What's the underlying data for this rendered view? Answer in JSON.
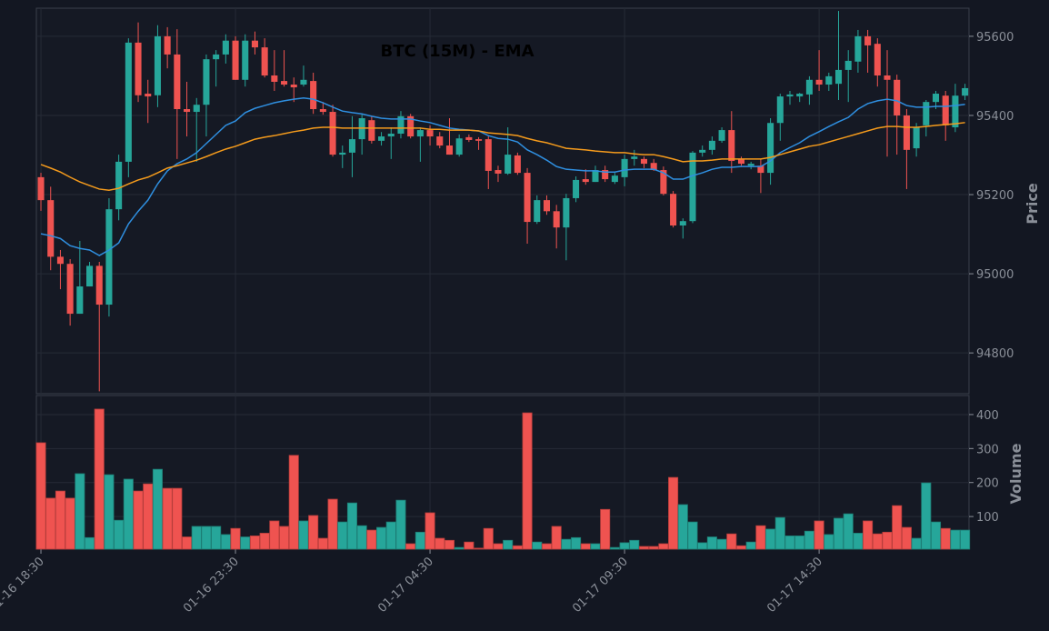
{
  "chart_data": {
    "type": "candlestick",
    "title": "BTC (15M) - EMA",
    "ylabel": "Price",
    "volume_label": "Volume",
    "up_color": "#26a69a",
    "down_color": "#ef5350",
    "grid": true,
    "xlim": [
      -0.47,
      95.41
    ],
    "xticks": [
      {
        "value": 0,
        "label": "01-16 18:30"
      },
      {
        "value": 20,
        "label": "01-16 23:30"
      },
      {
        "value": 40,
        "label": "01-17 04:30"
      },
      {
        "value": 60,
        "label": "01-17 09:30"
      },
      {
        "value": 80,
        "label": "01-17 14:30"
      }
    ],
    "ylim": [
      94697,
      95671
    ],
    "yticks": [
      94800,
      95000,
      95200,
      95400,
      95600
    ],
    "volume_ylim": [
      4,
      456
    ],
    "volume_yticks": [
      100,
      200,
      300,
      400
    ],
    "open": [
      95244,
      95186,
      95043,
      95025,
      94899,
      94968,
      95020,
      94922,
      95163,
      95283,
      95584,
      95455,
      95451,
      95600,
      95554,
      95416,
      95409,
      95427,
      95542,
      95554,
      95589,
      95490,
      95589,
      95572,
      95501,
      95487,
      95478,
      95478,
      95487,
      95416,
      95409,
      95301,
      95306,
      95340,
      95388,
      95336,
      95347,
      95354,
      95398,
      95347,
      95363,
      95347,
      95324,
      95301,
      95345,
      95340,
      95340,
      95262,
      95253,
      95299,
      95255,
      95131,
      95186,
      95158,
      95117,
      95191,
      95239,
      95232,
      95262,
      95232,
      95244,
      95290,
      95290,
      95280,
      95262,
      95202,
      95122,
      95133,
      95306,
      95313,
      95336,
      95363,
      95290,
      95273,
      95273,
      95255,
      95381,
      95448,
      95448,
      95453,
      95490,
      95478,
      95480,
      95515,
      95536,
      95600,
      95581,
      95501,
      95490,
      95400,
      95317,
      95375,
      95434,
      95450,
      95370,
      95450
    ],
    "high": [
      95255,
      95220,
      95060,
      95037,
      95083,
      95030,
      95030,
      95191,
      95301,
      95595,
      95635,
      95490,
      95628,
      95623,
      95618,
      95485,
      95444,
      95554,
      95565,
      95605,
      95600,
      95605,
      95612,
      95595,
      95565,
      95565,
      95496,
      95526,
      95508,
      95434,
      95427,
      95324,
      95398,
      95404,
      95398,
      95358,
      95370,
      95411,
      95404,
      95370,
      95375,
      95358,
      95393,
      95352,
      95352,
      95345,
      95347,
      95273,
      95370,
      95306,
      95267,
      95198,
      95198,
      95174,
      95202,
      95246,
      95264,
      95273,
      95273,
      95255,
      95301,
      95313,
      95296,
      95290,
      95271,
      95209,
      95140,
      95310,
      95324,
      95347,
      95370,
      95411,
      95296,
      95283,
      95290,
      95393,
      95455,
      95462,
      95457,
      95499,
      95565,
      95508,
      95664,
      95565,
      95616,
      95616,
      95595,
      95565,
      95503,
      95416,
      95381,
      95439,
      95462,
      95462,
      95480,
      95480
    ],
    "low": [
      95159,
      95009,
      94961,
      94869,
      94899,
      94968,
      94703,
      94892,
      95135,
      95244,
      95434,
      95381,
      95421,
      95519,
      95290,
      95347,
      95283,
      95347,
      95473,
      95531,
      95490,
      95473,
      95554,
      95496,
      95462,
      95473,
      95434,
      95473,
      95404,
      95402,
      95296,
      95267,
      95244,
      95301,
      95329,
      95324,
      95290,
      95342,
      95342,
      95283,
      95324,
      95317,
      95301,
      95296,
      95333,
      95313,
      95214,
      95232,
      95250,
      95250,
      95076,
      95126,
      95149,
      95064,
      95034,
      95181,
      95225,
      95232,
      95232,
      95227,
      95221,
      95273,
      95267,
      95260,
      95198,
      95117,
      95089,
      95128,
      95296,
      95301,
      95331,
      95255,
      95273,
      95264,
      95204,
      95225,
      95336,
      95427,
      95434,
      95427,
      95462,
      95462,
      95439,
      95434,
      95508,
      95508,
      95473,
      95296,
      95301,
      95214,
      95296,
      95347,
      95416,
      95336,
      95358,
      95439
    ],
    "close": [
      95186,
      95043,
      95025,
      94899,
      94968,
      95020,
      94922,
      95163,
      95283,
      95584,
      95451,
      95448,
      95600,
      95554,
      95416,
      95409,
      95427,
      95542,
      95554,
      95589,
      95490,
      95589,
      95572,
      95501,
      95485,
      95478,
      95471,
      95490,
      95416,
      95409,
      95301,
      95306,
      95340,
      95393,
      95336,
      95347,
      95354,
      95398,
      95347,
      95363,
      95347,
      95324,
      95301,
      95342,
      95338,
      95336,
      95260,
      95253,
      95301,
      95255,
      95131,
      95186,
      95158,
      95117,
      95191,
      95237,
      95232,
      95262,
      95239,
      95248,
      95290,
      95296,
      95278,
      95262,
      95202,
      95122,
      95133,
      95306,
      95313,
      95336,
      95363,
      95285,
      95278,
      95278,
      95255,
      95381,
      95448,
      95453,
      95455,
      95490,
      95478,
      95499,
      95515,
      95538,
      95600,
      95577,
      95501,
      95490,
      95400,
      95313,
      95370,
      95434,
      95455,
      95375,
      95450,
      95469
    ],
    "volume": [
      317,
      154,
      175,
      154,
      226,
      38,
      416,
      223,
      89,
      210,
      175,
      196,
      239,
      183,
      183,
      40,
      71,
      71,
      71,
      47,
      65,
      40,
      43,
      51,
      87,
      71,
      280,
      87,
      103,
      36,
      151,
      84,
      140,
      73,
      60,
      68,
      84,
      148,
      20,
      54,
      111,
      36,
      30,
      9,
      25,
      7,
      65,
      20,
      30,
      14,
      405,
      25,
      20,
      71,
      33,
      38,
      20,
      20,
      121,
      9,
      23,
      30,
      12,
      12,
      20,
      215,
      135,
      84,
      23,
      40,
      33,
      49,
      14,
      25,
      73,
      63,
      97,
      43,
      43,
      57,
      87,
      47,
      95,
      108,
      51,
      87,
      49,
      54,
      132,
      68,
      36,
      199,
      84,
      65,
      60,
      60
    ],
    "ema": [
      {
        "color": "#2f8fe0",
        "values": [
          95101,
          95096,
          95089,
          95071,
          95064,
          95060,
          95046,
          95060,
          95078,
          95126,
          95158,
          95186,
          95227,
          95260,
          95278,
          95290,
          95306,
          95329,
          95352,
          95375,
          95386,
          95407,
          95418,
          95425,
          95432,
          95437,
          95441,
          95444,
          95441,
          95432,
          95421,
          95411,
          95407,
          95404,
          95398,
          95393,
          95391,
          95391,
          95391,
          95386,
          95382,
          95375,
          95368,
          95365,
          95363,
          95361,
          95349,
          95342,
          95340,
          95333,
          95313,
          95301,
          95287,
          95271,
          95264,
          95262,
          95260,
          95260,
          95257,
          95257,
          95262,
          95264,
          95264,
          95264,
          95255,
          95239,
          95239,
          95248,
          95255,
          95264,
          95269,
          95269,
          95271,
          95271,
          95271,
          95285,
          95306,
          95319,
          95331,
          95347,
          95359,
          95372,
          95384,
          95395,
          95416,
          95430,
          95437,
          95441,
          95437,
          95425,
          95421,
          95421,
          95423,
          95423,
          95425,
          95428
        ]
      },
      {
        "color": "#f59b1c",
        "values": [
          95276,
          95267,
          95257,
          95244,
          95232,
          95223,
          95214,
          95211,
          95216,
          95227,
          95237,
          95244,
          95255,
          95267,
          95273,
          95280,
          95287,
          95296,
          95306,
          95315,
          95322,
          95331,
          95340,
          95345,
          95349,
          95354,
          95359,
          95363,
          95368,
          95370,
          95370,
          95368,
          95368,
          95368,
          95368,
          95368,
          95368,
          95368,
          95368,
          95368,
          95365,
          95365,
          95363,
          95363,
          95363,
          95361,
          95356,
          95354,
          95352,
          95349,
          95342,
          95336,
          95331,
          95324,
          95317,
          95315,
          95313,
          95310,
          95308,
          95306,
          95306,
          95303,
          95301,
          95301,
          95296,
          95290,
          95283,
          95285,
          95285,
          95287,
          95290,
          95290,
          95290,
          95290,
          95290,
          95294,
          95301,
          95308,
          95315,
          95322,
          95326,
          95333,
          95340,
          95347,
          95354,
          95361,
          95368,
          95372,
          95372,
          95370,
          95370,
          95372,
          95375,
          95377,
          95379,
          95382
        ]
      }
    ]
  }
}
